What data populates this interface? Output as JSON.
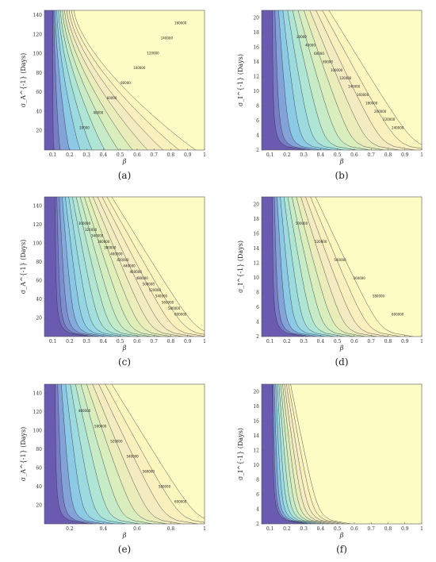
{
  "chart_data": [
    {
      "panel": "(a)",
      "type": "contour",
      "xlabel": "β",
      "ylabel": "σ_A^{-1} (Days)",
      "xlim": [
        0.05,
        1
      ],
      "ylim": [
        0,
        145
      ],
      "xticks": [
        "0.1",
        "0.2",
        "0.3",
        "0.4",
        "0.5",
        "0.6",
        "0.7",
        "0.8",
        "0.9",
        "1"
      ],
      "yticks": [
        "20",
        "40",
        "60",
        "80",
        "100",
        "120",
        "140"
      ],
      "increasing": "up-right",
      "levels": [
        20000,
        40000,
        60000,
        80000,
        100000,
        120000,
        140000,
        160000
      ]
    },
    {
      "panel": "(b)",
      "type": "contour",
      "xlabel": "β",
      "ylabel": "σ_I^{-1} (Days)",
      "xlim": [
        0.05,
        1
      ],
      "ylim": [
        2,
        21
      ],
      "xticks": [
        "0.1",
        "0.2",
        "0.3",
        "0.4",
        "0.5",
        "0.6",
        "0.7",
        "0.8",
        "0.9",
        "1"
      ],
      "yticks": [
        "2",
        "4",
        "6",
        "8",
        "10",
        "12",
        "14",
        "16",
        "18",
        "20"
      ],
      "increasing": "down-right",
      "levels": [
        20000,
        40000,
        60000,
        80000,
        100000,
        120000,
        140000,
        160000,
        180000,
        200000,
        220000,
        240000
      ]
    },
    {
      "panel": "(c)",
      "type": "contour",
      "xlabel": "β",
      "ylabel": "σ_A^{-1} (Days)",
      "xlim": [
        0.05,
        1
      ],
      "ylim": [
        0,
        150
      ],
      "xticks": [
        "0.1",
        "0.2",
        "0.3",
        "0.4",
        "0.5",
        "0.6",
        "0.7",
        "0.8",
        "0.9",
        "1"
      ],
      "yticks": [
        "20",
        "40",
        "60",
        "80",
        "100",
        "120",
        "140"
      ],
      "increasing": "down-right",
      "levels": [
        300000,
        320000,
        340000,
        360000,
        380000,
        400000,
        420000,
        440000,
        460000,
        480000,
        500000,
        520000,
        540000,
        560000,
        580000,
        600000
      ]
    },
    {
      "panel": "(d)",
      "type": "contour",
      "xlabel": "β",
      "ylabel": "σ_I^{-1} (Days)",
      "xlim": [
        0.05,
        1
      ],
      "ylim": [
        2,
        21
      ],
      "xticks": [
        "0.1",
        "0.2",
        "0.3",
        "0.4",
        "0.5",
        "0.6",
        "0.7",
        "0.8",
        "0.9",
        "1"
      ],
      "yticks": [
        "2",
        "4",
        "6",
        "8",
        "10",
        "12",
        "14",
        "16",
        "18",
        "20"
      ],
      "increasing": "down-right",
      "levels": [
        500000,
        520000,
        540000,
        560000,
        580000,
        600000
      ]
    },
    {
      "panel": "(e)",
      "type": "contour",
      "xlabel": "β",
      "ylabel": "σ_A^{-1} (Days)",
      "xlim": [
        0.05,
        1
      ],
      "ylim": [
        0,
        150
      ],
      "xticks": [
        "0.2",
        "0.4",
        "0.6",
        "0.8",
        "1"
      ],
      "yticks": [
        "20",
        "40",
        "60",
        "80",
        "100",
        "120",
        "140"
      ],
      "increasing": "down-right",
      "levels": [
        480000,
        500000,
        520000,
        540000,
        560000,
        580000,
        600000
      ]
    },
    {
      "panel": "(f)",
      "type": "contour",
      "xlabel": "β",
      "ylabel": "σ_I^{-1} (Days)",
      "xlim": [
        0.05,
        1
      ],
      "ylim": [
        2,
        21
      ],
      "xticks": [
        "0.1",
        "0.2",
        "0.3",
        "0.4",
        "0.5",
        "0.6",
        "0.7",
        "0.8",
        "0.9",
        "1"
      ],
      "yticks": [
        "2",
        "4",
        "6",
        "8",
        "10",
        "12",
        "14",
        "16",
        "18",
        "20"
      ],
      "increasing": "down-right",
      "levels": []
    }
  ]
}
